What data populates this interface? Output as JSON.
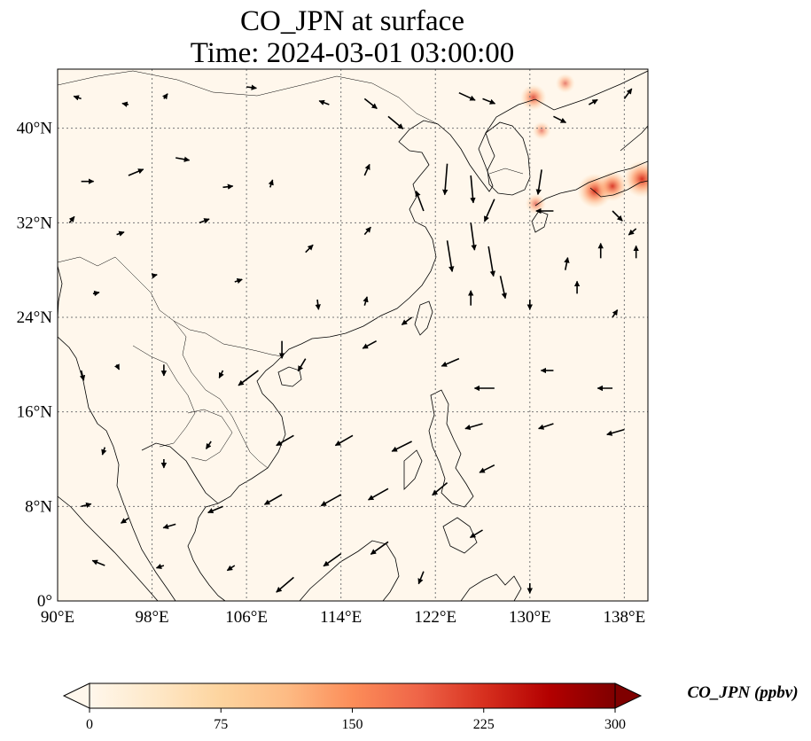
{
  "title": {
    "line1": "CO_JPN at surface",
    "line2": "Time: 2024-03-01 03:00:00"
  },
  "map": {
    "type": "heatmap",
    "projection": "PlateCarree",
    "lon_range": [
      90,
      140
    ],
    "lat_range": [
      0,
      45
    ],
    "gridlines": "dotted",
    "lon_ticks": [
      {
        "value": 90,
        "label": "90°E"
      },
      {
        "value": 98,
        "label": "98°E"
      },
      {
        "value": 106,
        "label": "106°E"
      },
      {
        "value": 114,
        "label": "114°E"
      },
      {
        "value": 122,
        "label": "122°E"
      },
      {
        "value": 130,
        "label": "130°E"
      },
      {
        "value": 138,
        "label": "138°E"
      }
    ],
    "lat_ticks": [
      {
        "value": 0,
        "label": "0°"
      },
      {
        "value": 8,
        "label": "8°N"
      },
      {
        "value": 16,
        "label": "16°N"
      },
      {
        "value": 24,
        "label": "24°N"
      },
      {
        "value": 32,
        "label": "32°N"
      },
      {
        "value": 40,
        "label": "40°N"
      }
    ]
  },
  "colorbar": {
    "label": "CO_JPN (ppbv)",
    "min": 0,
    "max": 300,
    "extend": "both",
    "colormap": "OrRd",
    "colors": [
      "#fff7ec",
      "#fee8c8",
      "#fdd49e",
      "#fdbb84",
      "#fc8d59",
      "#ef6548",
      "#d7301f",
      "#b30000",
      "#7f0000"
    ],
    "ticks": [
      {
        "value": 0,
        "label": "0"
      },
      {
        "value": 75,
        "label": "75"
      },
      {
        "value": 150,
        "label": "150"
      },
      {
        "value": 225,
        "label": "225"
      },
      {
        "value": 300,
        "label": "300"
      }
    ]
  },
  "chart_data": {
    "type": "heatmap",
    "field": "CO_JPN",
    "units": "ppbv",
    "background_value": 2,
    "hotspots": [
      {
        "lon": 139.5,
        "lat": 35.7,
        "value": 120
      },
      {
        "lon": 135.5,
        "lat": 34.7,
        "value": 110
      },
      {
        "lon": 137.0,
        "lat": 35.1,
        "value": 90
      },
      {
        "lon": 130.5,
        "lat": 33.6,
        "value": 45
      },
      {
        "lon": 130.3,
        "lat": 42.6,
        "value": 70
      },
      {
        "lon": 131.0,
        "lat": 39.8,
        "value": 35
      },
      {
        "lon": 133.0,
        "lat": 43.8,
        "value": 40
      }
    ],
    "wind_vectors": [
      {
        "lon": 92,
        "lat": 42.5,
        "u": -0.6,
        "v": 0.2
      },
      {
        "lon": 96,
        "lat": 42,
        "u": -0.5,
        "v": 0.1
      },
      {
        "lon": 99,
        "lat": 42.5,
        "u": 0.3,
        "v": 0.4
      },
      {
        "lon": 106,
        "lat": 43.5,
        "u": 0.8,
        "v": -0.1
      },
      {
        "lon": 113,
        "lat": 42,
        "u": -0.8,
        "v": 0.3
      },
      {
        "lon": 116,
        "lat": 42.5,
        "u": 1.0,
        "v": -0.8
      },
      {
        "lon": 118,
        "lat": 41,
        "u": 1.2,
        "v": -1.0
      },
      {
        "lon": 124,
        "lat": 43,
        "u": 1.3,
        "v": -0.6
      },
      {
        "lon": 126,
        "lat": 42.5,
        "u": 1.0,
        "v": -0.4
      },
      {
        "lon": 132,
        "lat": 41,
        "u": 1.0,
        "v": -0.5
      },
      {
        "lon": 135,
        "lat": 42,
        "u": 0.7,
        "v": 0.4
      },
      {
        "lon": 138,
        "lat": 42.5,
        "u": 0.6,
        "v": 0.8
      },
      {
        "lon": 92,
        "lat": 35.5,
        "u": 1.0,
        "v": 0.0
      },
      {
        "lon": 96,
        "lat": 36,
        "u": 1.2,
        "v": 0.5
      },
      {
        "lon": 100,
        "lat": 37.5,
        "u": 1.1,
        "v": -0.2
      },
      {
        "lon": 104,
        "lat": 35,
        "u": 0.8,
        "v": 0.1
      },
      {
        "lon": 108,
        "lat": 35,
        "u": 0.2,
        "v": 0.6
      },
      {
        "lon": 116,
        "lat": 36,
        "u": 0.4,
        "v": 0.9
      },
      {
        "lon": 123,
        "lat": 37,
        "u": -0.2,
        "v": -2.5
      },
      {
        "lon": 125,
        "lat": 36,
        "u": 0.2,
        "v": -2.2
      },
      {
        "lon": 127,
        "lat": 34,
        "u": -0.8,
        "v": -1.8
      },
      {
        "lon": 131,
        "lat": 36.5,
        "u": -0.3,
        "v": -2.0
      },
      {
        "lon": 132,
        "lat": 33,
        "u": -1.4,
        "v": 0.0
      },
      {
        "lon": 137,
        "lat": 33,
        "u": 0.8,
        "v": -0.8
      },
      {
        "lon": 139,
        "lat": 31.5,
        "u": -0.6,
        "v": -0.5
      },
      {
        "lon": 91,
        "lat": 32,
        "u": 0.4,
        "v": 0.5
      },
      {
        "lon": 95,
        "lat": 31,
        "u": 0.6,
        "v": 0.2
      },
      {
        "lon": 102,
        "lat": 32,
        "u": 0.8,
        "v": 0.3
      },
      {
        "lon": 111,
        "lat": 29.5,
        "u": 0.6,
        "v": 0.6
      },
      {
        "lon": 116,
        "lat": 31,
        "u": 0.5,
        "v": 0.6
      },
      {
        "lon": 121,
        "lat": 33,
        "u": -0.6,
        "v": 1.6
      },
      {
        "lon": 123,
        "lat": 30.5,
        "u": 0.4,
        "v": -2.5
      },
      {
        "lon": 125,
        "lat": 32,
        "u": 0.3,
        "v": -2.2
      },
      {
        "lon": 126.5,
        "lat": 30,
        "u": 0.4,
        "v": -2.4
      },
      {
        "lon": 127.5,
        "lat": 27.5,
        "u": 0.4,
        "v": -1.8
      },
      {
        "lon": 133,
        "lat": 28,
        "u": 0.2,
        "v": 1.0
      },
      {
        "lon": 136,
        "lat": 29,
        "u": 0.0,
        "v": 1.2
      },
      {
        "lon": 139,
        "lat": 29,
        "u": 0.0,
        "v": 1.0
      },
      {
        "lon": 93,
        "lat": 26,
        "u": 0.5,
        "v": 0.1
      },
      {
        "lon": 98,
        "lat": 27.5,
        "u": 0.4,
        "v": 0.1
      },
      {
        "lon": 105,
        "lat": 27,
        "u": 0.6,
        "v": 0.2
      },
      {
        "lon": 112,
        "lat": 25.5,
        "u": 0.1,
        "v": -0.8
      },
      {
        "lon": 116,
        "lat": 25,
        "u": 0.2,
        "v": 0.7
      },
      {
        "lon": 120,
        "lat": 24,
        "u": -0.8,
        "v": -0.6
      },
      {
        "lon": 125,
        "lat": 25,
        "u": 0.0,
        "v": 1.2
      },
      {
        "lon": 130,
        "lat": 25.5,
        "u": 0.0,
        "v": -0.8
      },
      {
        "lon": 134,
        "lat": 26,
        "u": 0.0,
        "v": 1.0
      },
      {
        "lon": 137,
        "lat": 24,
        "u": 0.4,
        "v": 0.6
      },
      {
        "lon": 92,
        "lat": 19.5,
        "u": 0.2,
        "v": -0.8
      },
      {
        "lon": 95,
        "lat": 20,
        "u": 0.2,
        "v": -0.4
      },
      {
        "lon": 99,
        "lat": 20,
        "u": 0.0,
        "v": -0.9
      },
      {
        "lon": 104,
        "lat": 19.5,
        "u": -0.3,
        "v": -0.6
      },
      {
        "lon": 107,
        "lat": 19.5,
        "u": -1.6,
        "v": -1.2
      },
      {
        "lon": 109,
        "lat": 22,
        "u": 0.0,
        "v": -1.4
      },
      {
        "lon": 111,
        "lat": 20.5,
        "u": -0.6,
        "v": -1.0
      },
      {
        "lon": 117,
        "lat": 22,
        "u": -1.1,
        "v": -0.6
      },
      {
        "lon": 124,
        "lat": 20.5,
        "u": -1.4,
        "v": -0.6
      },
      {
        "lon": 127,
        "lat": 18,
        "u": -1.6,
        "v": 0.0
      },
      {
        "lon": 132,
        "lat": 19.5,
        "u": -1.0,
        "v": 0.0
      },
      {
        "lon": 137,
        "lat": 18,
        "u": -1.2,
        "v": 0.0
      },
      {
        "lon": 94,
        "lat": 13,
        "u": -0.2,
        "v": -0.6
      },
      {
        "lon": 99,
        "lat": 12,
        "u": 0.0,
        "v": -0.7
      },
      {
        "lon": 103,
        "lat": 13.5,
        "u": -0.4,
        "v": -0.6
      },
      {
        "lon": 110,
        "lat": 14,
        "u": -1.4,
        "v": -0.8
      },
      {
        "lon": 115,
        "lat": 14,
        "u": -1.4,
        "v": -0.8
      },
      {
        "lon": 120,
        "lat": 13.5,
        "u": -1.6,
        "v": -0.8
      },
      {
        "lon": 126,
        "lat": 15,
        "u": -1.4,
        "v": -0.4
      },
      {
        "lon": 132,
        "lat": 15,
        "u": -1.2,
        "v": -0.4
      },
      {
        "lon": 138,
        "lat": 14.5,
        "u": -1.4,
        "v": -0.4
      },
      {
        "lon": 92,
        "lat": 8,
        "u": 0.8,
        "v": 0.2
      },
      {
        "lon": 96,
        "lat": 7,
        "u": -0.6,
        "v": -0.4
      },
      {
        "lon": 100,
        "lat": 6.5,
        "u": -1.0,
        "v": -0.3
      },
      {
        "lon": 104,
        "lat": 8,
        "u": -1.2,
        "v": -0.5
      },
      {
        "lon": 109,
        "lat": 9,
        "u": -1.4,
        "v": -0.8
      },
      {
        "lon": 114,
        "lat": 9,
        "u": -1.6,
        "v": -0.9
      },
      {
        "lon": 118,
        "lat": 9.5,
        "u": -1.6,
        "v": -0.9
      },
      {
        "lon": 123,
        "lat": 10,
        "u": -1.2,
        "v": -1.0
      },
      {
        "lon": 127,
        "lat": 11.5,
        "u": -1.2,
        "v": -0.6
      },
      {
        "lon": 126,
        "lat": 6,
        "u": -1.0,
        "v": -0.6
      },
      {
        "lon": 94,
        "lat": 3,
        "u": -1.0,
        "v": 0.4
      },
      {
        "lon": 99,
        "lat": 3,
        "u": -0.6,
        "v": -0.2
      },
      {
        "lon": 105,
        "lat": 3,
        "u": -0.6,
        "v": -0.4
      },
      {
        "lon": 110,
        "lat": 2,
        "u": -1.4,
        "v": -1.2
      },
      {
        "lon": 114,
        "lat": 4,
        "u": -1.4,
        "v": -1.0
      },
      {
        "lon": 118,
        "lat": 5,
        "u": -1.4,
        "v": -1.0
      },
      {
        "lon": 121,
        "lat": 2.5,
        "u": -0.4,
        "v": -1.0
      },
      {
        "lon": 130,
        "lat": 1.5,
        "u": 0.0,
        "v": -0.8
      }
    ]
  }
}
